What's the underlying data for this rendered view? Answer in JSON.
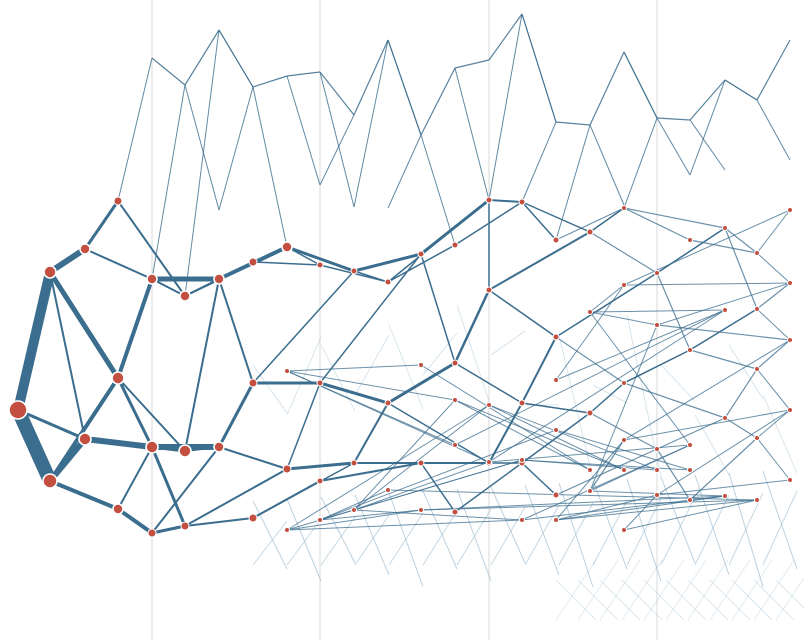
{
  "diagram": {
    "type": "layered-network",
    "colors": {
      "background": "#ffffff",
      "edge": "#3b6d8e",
      "edge_faint": "#9fbed2",
      "node_fill": "#c24f3f",
      "node_stroke": "#ffffff",
      "gridline": "#d8d8d8"
    },
    "nodes": [
      {
        "id": "a1",
        "w": 6
      },
      {
        "id": "b1",
        "w": 3
      },
      {
        "id": "b2",
        "w": 3
      },
      {
        "id": "c1",
        "w": 2
      },
      {
        "id": "c2",
        "w": 3
      },
      {
        "id": "c3",
        "w": 3
      },
      {
        "id": "c4",
        "w": 2
      },
      {
        "id": "d1",
        "w": 2
      },
      {
        "id": "d2",
        "w": 2.5
      },
      {
        "id": "d3",
        "w": 2
      },
      {
        "id": "d4",
        "w": 2.5
      },
      {
        "id": "d5",
        "w": 2
      },
      {
        "id": "e1",
        "w": 2
      },
      {
        "id": "e2",
        "w": 2
      },
      {
        "id": "e3",
        "w": 2
      },
      {
        "id": "e4",
        "w": 2
      },
      {
        "id": "f1",
        "w": 2
      },
      {
        "id": "f2",
        "w": 2
      },
      {
        "id": "f3",
        "w": 2
      },
      {
        "id": "f4",
        "w": 2
      },
      {
        "id": "f5",
        "w": 2
      },
      {
        "id": "g1",
        "w": 2
      },
      {
        "id": "g2",
        "w": 2
      },
      {
        "id": "g3",
        "w": 2
      },
      {
        "id": "g4",
        "w": 2
      },
      {
        "id": "g5",
        "w": 2
      },
      {
        "id": "h1",
        "w": 2
      },
      {
        "id": "h2",
        "w": 2
      },
      {
        "id": "h3",
        "w": 2
      },
      {
        "id": "h4",
        "w": 2
      },
      {
        "id": "i1",
        "w": 1.5
      },
      {
        "id": "i2",
        "w": 1.5
      },
      {
        "id": "i3",
        "w": 1.5
      },
      {
        "id": "i4",
        "w": 1.5
      },
      {
        "id": "i5",
        "w": 1.5
      },
      {
        "id": "j1",
        "w": 1.5
      },
      {
        "id": "j2",
        "w": 1.5
      },
      {
        "id": "j3",
        "w": 1.5
      },
      {
        "id": "j4",
        "w": 1.5
      },
      {
        "id": "k1",
        "w": 1.5
      },
      {
        "id": "k2",
        "w": 1.5
      },
      {
        "id": "k3",
        "w": 1.5
      },
      {
        "id": "k4",
        "w": 1.5
      },
      {
        "id": "k5",
        "w": 1.5
      },
      {
        "id": "l1",
        "w": 1.2
      },
      {
        "id": "l2",
        "w": 1.2
      },
      {
        "id": "l3",
        "w": 1.2
      },
      {
        "id": "l4",
        "w": 1.2
      },
      {
        "id": "m1",
        "w": 1.2
      },
      {
        "id": "m2",
        "w": 1.2
      },
      {
        "id": "m3",
        "w": 1.2
      },
      {
        "id": "m4",
        "w": 1.2
      },
      {
        "id": "m5",
        "w": 1.2
      },
      {
        "id": "n1",
        "w": 1.2
      },
      {
        "id": "n2",
        "w": 1.2
      },
      {
        "id": "n3",
        "w": 1.2
      },
      {
        "id": "n4",
        "w": 1.2
      },
      {
        "id": "o1",
        "w": 1
      },
      {
        "id": "o2",
        "w": 1
      },
      {
        "id": "o3",
        "w": 1
      },
      {
        "id": "o4",
        "w": 1
      },
      {
        "id": "o5",
        "w": 1
      },
      {
        "id": "p1",
        "w": 1
      },
      {
        "id": "p2",
        "w": 1
      },
      {
        "id": "p3",
        "w": 1
      },
      {
        "id": "p4",
        "w": 1
      },
      {
        "id": "q1",
        "w": 1
      },
      {
        "id": "q2",
        "w": 1
      },
      {
        "id": "q3",
        "w": 1
      },
      {
        "id": "q4",
        "w": 1
      },
      {
        "id": "q5",
        "w": 1
      },
      {
        "id": "r1",
        "w": 1
      },
      {
        "id": "r2",
        "w": 1
      },
      {
        "id": "r3",
        "w": 1
      },
      {
        "id": "r4",
        "w": 1
      },
      {
        "id": "s1",
        "w": 1
      },
      {
        "id": "s2",
        "w": 1
      },
      {
        "id": "s3",
        "w": 1
      },
      {
        "id": "s4",
        "w": 1
      },
      {
        "id": "s5",
        "w": 1
      },
      {
        "id": "t1",
        "w": 1
      },
      {
        "id": "t2",
        "w": 1
      },
      {
        "id": "t3",
        "w": 1
      },
      {
        "id": "t4",
        "w": 1
      },
      {
        "id": "u1",
        "w": 1
      },
      {
        "id": "u2",
        "w": 1
      },
      {
        "id": "u3",
        "w": 1
      },
      {
        "id": "u4",
        "w": 1
      },
      {
        "id": "u5",
        "w": 1
      },
      {
        "id": "v1",
        "w": 1
      },
      {
        "id": "v2",
        "w": 1
      },
      {
        "id": "v3",
        "w": 1
      },
      {
        "id": "v4",
        "w": 1
      }
    ],
    "edges": [
      [
        "a1",
        "b1",
        10
      ],
      [
        "a1",
        "b2",
        14
      ],
      [
        "b1",
        "c1",
        6
      ],
      [
        "b1",
        "c2",
        5
      ],
      [
        "b2",
        "c2",
        4
      ],
      [
        "b2",
        "c3",
        6
      ],
      [
        "a1",
        "c3",
        3
      ],
      [
        "b1",
        "c3",
        2
      ],
      [
        "b2",
        "c4",
        4
      ],
      [
        "c1",
        "d1",
        3
      ],
      [
        "c2",
        "d2",
        4
      ],
      [
        "c2",
        "d3",
        2
      ],
      [
        "c3",
        "d4",
        6
      ],
      [
        "c3",
        "d3",
        3
      ],
      [
        "c4",
        "d5",
        4
      ],
      [
        "c1",
        "d2",
        2
      ],
      [
        "c2",
        "d4",
        3
      ],
      [
        "c4",
        "d4",
        2
      ],
      [
        "d1",
        "e1",
        2
      ],
      [
        "d2",
        "e2",
        5
      ],
      [
        "d2",
        "e1",
        2
      ],
      [
        "d3",
        "e2",
        2
      ],
      [
        "d3",
        "e3",
        2
      ],
      [
        "d4",
        "e3",
        6
      ],
      [
        "d4",
        "e4",
        3
      ],
      [
        "d5",
        "e4",
        3
      ],
      [
        "d5",
        "e3",
        2
      ],
      [
        "e1",
        "f1",
        2
      ],
      [
        "e1",
        "f2",
        2
      ],
      [
        "e2",
        "f2",
        4
      ],
      [
        "e2",
        "f3",
        2
      ],
      [
        "e3",
        "f3",
        3
      ],
      [
        "e3",
        "f4",
        2
      ],
      [
        "e4",
        "f4",
        2
      ],
      [
        "e4",
        "f5",
        2
      ],
      [
        "f1",
        "g1",
        1.5
      ],
      [
        "f2",
        "g2",
        3
      ],
      [
        "f2",
        "g1",
        1.5
      ],
      [
        "f3",
        "g3",
        3
      ],
      [
        "f3",
        "g2",
        1.5
      ],
      [
        "f4",
        "g4",
        3
      ],
      [
        "f4",
        "g3",
        1.5
      ],
      [
        "f5",
        "g5",
        2
      ],
      [
        "f5",
        "g4",
        1.5
      ],
      [
        "g1",
        "h1",
        1.5
      ],
      [
        "g2",
        "h2",
        3
      ],
      [
        "g2",
        "h1",
        1.5
      ],
      [
        "g3",
        "h2",
        1.5
      ],
      [
        "g3",
        "h3",
        3
      ],
      [
        "g4",
        "h3",
        2
      ],
      [
        "g4",
        "h4",
        2
      ],
      [
        "g5",
        "h4",
        2
      ],
      [
        "h1",
        "i1",
        1.5
      ],
      [
        "h1",
        "i2",
        1.5
      ],
      [
        "h2",
        "i2",
        3
      ],
      [
        "h2",
        "i3",
        1.5
      ],
      [
        "h3",
        "i3",
        3
      ],
      [
        "h3",
        "i4",
        1.5
      ],
      [
        "h4",
        "i4",
        2
      ],
      [
        "h4",
        "i5",
        1.5
      ],
      [
        "i1",
        "j1",
        1.5
      ],
      [
        "i2",
        "j1",
        2
      ],
      [
        "i2",
        "j2",
        1.5
      ],
      [
        "i3",
        "j2",
        2.5
      ],
      [
        "i3",
        "j3",
        1.5
      ],
      [
        "i4",
        "j3",
        2
      ],
      [
        "i4",
        "j4",
        1.5
      ],
      [
        "i5",
        "j4",
        1.5
      ],
      [
        "j1",
        "k1",
        1.5
      ],
      [
        "j1",
        "k2",
        1.5
      ],
      [
        "j2",
        "k2",
        2
      ],
      [
        "j2",
        "k3",
        1.5
      ],
      [
        "j3",
        "k3",
        2
      ],
      [
        "j3",
        "k4",
        1.5
      ],
      [
        "j4",
        "k4",
        1.5
      ],
      [
        "j4",
        "k5",
        1.5
      ],
      [
        "k1",
        "l1",
        1.2
      ],
      [
        "k2",
        "l1",
        1.5
      ],
      [
        "k2",
        "l2",
        1.2
      ],
      [
        "k3",
        "l2",
        1.5
      ],
      [
        "k3",
        "l3",
        1.2
      ],
      [
        "k4",
        "l3",
        1.5
      ],
      [
        "k4",
        "l4",
        1.2
      ],
      [
        "k5",
        "l4",
        1.2
      ],
      [
        "l1",
        "m1",
        1.2
      ],
      [
        "l1",
        "m2",
        1.2
      ],
      [
        "l2",
        "m2",
        1.5
      ],
      [
        "l2",
        "m3",
        1.2
      ],
      [
        "l3",
        "m3",
        1.5
      ],
      [
        "l3",
        "m4",
        1.2
      ],
      [
        "l4",
        "m4",
        1.2
      ],
      [
        "l4",
        "m5",
        1.2
      ],
      [
        "m1",
        "n1",
        1.2
      ],
      [
        "m2",
        "n1",
        1.2
      ],
      [
        "m2",
        "n2",
        1.2
      ],
      [
        "m3",
        "n2",
        1.5
      ],
      [
        "m3",
        "n3",
        1.2
      ],
      [
        "m4",
        "n3",
        1.2
      ],
      [
        "m4",
        "n4",
        1.2
      ],
      [
        "m5",
        "n4",
        1.2
      ],
      [
        "n1",
        "o1",
        1
      ],
      [
        "n1",
        "o2",
        1
      ],
      [
        "n2",
        "o2",
        1.2
      ],
      [
        "n2",
        "o3",
        1
      ],
      [
        "n3",
        "o3",
        1.2
      ],
      [
        "n3",
        "o4",
        1
      ],
      [
        "n4",
        "o4",
        1
      ],
      [
        "n4",
        "o5",
        1
      ],
      [
        "o1",
        "p1",
        1
      ],
      [
        "o2",
        "p1",
        1
      ],
      [
        "o2",
        "p2",
        1
      ],
      [
        "o3",
        "p2",
        1.2
      ],
      [
        "o3",
        "p3",
        1
      ],
      [
        "o4",
        "p3",
        1
      ],
      [
        "o4",
        "p4",
        1
      ],
      [
        "o5",
        "p4",
        1
      ],
      [
        "p1",
        "q1",
        1
      ],
      [
        "p1",
        "q2",
        1
      ],
      [
        "p2",
        "q2",
        1
      ],
      [
        "p2",
        "q3",
        1
      ],
      [
        "p3",
        "q3",
        1.2
      ],
      [
        "p3",
        "q4",
        1
      ],
      [
        "p4",
        "q4",
        1
      ],
      [
        "p4",
        "q5",
        1
      ],
      [
        "q1",
        "r1",
        1
      ],
      [
        "q2",
        "r1",
        1
      ],
      [
        "q2",
        "r2",
        1
      ],
      [
        "q3",
        "r2",
        1
      ],
      [
        "q3",
        "r3",
        1
      ],
      [
        "q4",
        "r3",
        1
      ],
      [
        "q4",
        "r4",
        1
      ],
      [
        "q5",
        "r4",
        1
      ],
      [
        "r1",
        "s1",
        1
      ],
      [
        "r1",
        "s2",
        1
      ],
      [
        "r2",
        "s2",
        1
      ],
      [
        "r2",
        "s3",
        1
      ],
      [
        "r3",
        "s3",
        1
      ],
      [
        "r3",
        "s4",
        1
      ],
      [
        "r4",
        "s4",
        1
      ],
      [
        "r4",
        "s5",
        1
      ],
      [
        "s1",
        "t1",
        1
      ],
      [
        "s2",
        "t1",
        1
      ],
      [
        "s2",
        "t2",
        1
      ],
      [
        "s3",
        "t2",
        1
      ],
      [
        "s3",
        "t3",
        1
      ],
      [
        "s4",
        "t3",
        1
      ],
      [
        "s4",
        "t4",
        1
      ],
      [
        "s5",
        "t4",
        1
      ],
      [
        "t1",
        "u1",
        1
      ],
      [
        "t1",
        "u2",
        1
      ],
      [
        "t2",
        "u2",
        1
      ],
      [
        "t2",
        "u3",
        1
      ],
      [
        "t3",
        "u3",
        1
      ],
      [
        "t3",
        "u4",
        1
      ],
      [
        "t4",
        "u4",
        1
      ],
      [
        "t4",
        "u5",
        1
      ],
      [
        "u1",
        "v1",
        1
      ],
      [
        "u2",
        "v1",
        1
      ],
      [
        "u2",
        "v2",
        1
      ],
      [
        "u3",
        "v2",
        1
      ],
      [
        "u3",
        "v3",
        1
      ],
      [
        "u4",
        "v3",
        1
      ],
      [
        "u4",
        "v4",
        1
      ],
      [
        "u5",
        "v4",
        1
      ]
    ]
  }
}
